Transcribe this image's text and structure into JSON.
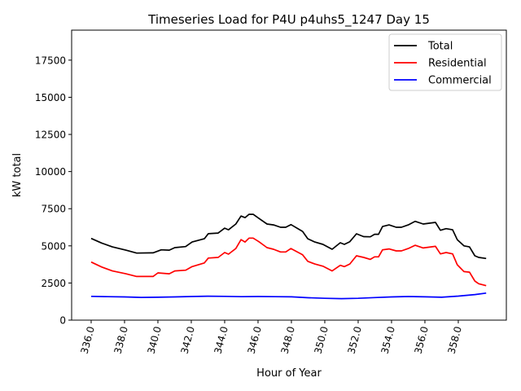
{
  "chart_data": {
    "type": "line",
    "title": "Timeseries Load for P4U p4uhs5_1247  Day 15",
    "xlabel": "Hour of Year",
    "ylabel": "kW total",
    "xlim": [
      334.83,
      360.88
    ],
    "ylim": [
      0,
      19520
    ],
    "xticks": [
      336,
      338,
      340,
      342,
      344,
      346,
      348,
      350,
      352,
      354,
      356,
      358
    ],
    "xtick_labels": [
      "336.0",
      "338.0",
      "340.0",
      "342.0",
      "344.0",
      "346.0",
      "348.0",
      "350.0",
      "352.0",
      "354.0",
      "356.0",
      "358.0"
    ],
    "yticks": [
      0,
      2500,
      5000,
      7500,
      10000,
      12500,
      15000,
      17500
    ],
    "ytick_labels": [
      "0",
      "2500",
      "5000",
      "7500",
      "10000",
      "12500",
      "15000",
      "17500"
    ],
    "grid": false,
    "legend_position": "top-right",
    "series": [
      {
        "name": "Total",
        "color": "#000000",
        "x": [
          336,
          336.62,
          337.27,
          338.08,
          338.73,
          339.71,
          340.2,
          340.68,
          341.01,
          341.66,
          342.05,
          342.78,
          343.02,
          343.61,
          344.0,
          344.23,
          344.67,
          344.98,
          345.22,
          345.46,
          345.71,
          346.05,
          346.54,
          346.93,
          347.35,
          347.66,
          347.97,
          348.67,
          348.98,
          349.4,
          349.89,
          350.44,
          350.93,
          351.17,
          351.5,
          351.9,
          352.33,
          352.73,
          352.98,
          353.22,
          353.46,
          353.85,
          354.28,
          354.59,
          355.0,
          355.41,
          355.9,
          356.63,
          356.93,
          357.27,
          357.66,
          357.94,
          358.34,
          358.67,
          358.99,
          359.22,
          359.67
        ],
        "y": [
          5500,
          5190,
          4930,
          4710,
          4510,
          4530,
          4730,
          4710,
          4880,
          4950,
          5260,
          5480,
          5820,
          5860,
          6190,
          6080,
          6470,
          7010,
          6900,
          7120,
          7120,
          6850,
          6470,
          6410,
          6250,
          6250,
          6430,
          5970,
          5480,
          5260,
          5100,
          4770,
          5210,
          5100,
          5280,
          5810,
          5620,
          5610,
          5780,
          5780,
          6300,
          6410,
          6250,
          6250,
          6410,
          6650,
          6470,
          6580,
          6050,
          6160,
          6080,
          5420,
          5000,
          4930,
          4330,
          4220,
          4150
        ]
      },
      {
        "name": "Residential",
        "color": "#ff0000",
        "x": [
          336,
          336.62,
          337.27,
          338.08,
          338.73,
          339.71,
          340.0,
          340.68,
          341.01,
          341.66,
          342.05,
          342.78,
          343.02,
          343.61,
          344.0,
          344.23,
          344.67,
          344.98,
          345.22,
          345.46,
          345.71,
          346.05,
          346.54,
          346.93,
          347.35,
          347.66,
          347.97,
          348.67,
          348.98,
          349.4,
          349.89,
          350.44,
          350.93,
          351.17,
          351.5,
          351.9,
          352.33,
          352.73,
          352.98,
          353.22,
          353.46,
          353.85,
          354.28,
          354.59,
          355.0,
          355.41,
          355.9,
          356.63,
          356.93,
          357.27,
          357.66,
          357.94,
          358.34,
          358.67,
          358.99,
          359.22,
          359.67
        ],
        "y": [
          3910,
          3580,
          3310,
          3120,
          2940,
          2940,
          3180,
          3120,
          3310,
          3360,
          3600,
          3850,
          4180,
          4220,
          4550,
          4440,
          4820,
          5420,
          5260,
          5520,
          5520,
          5280,
          4880,
          4770,
          4590,
          4590,
          4820,
          4400,
          3960,
          3780,
          3630,
          3310,
          3690,
          3600,
          3780,
          4330,
          4220,
          4090,
          4260,
          4260,
          4730,
          4790,
          4660,
          4660,
          4820,
          5040,
          4860,
          4970,
          4460,
          4550,
          4460,
          3730,
          3270,
          3230,
          2630,
          2450,
          2320
        ]
      },
      {
        "name": "Commercial",
        "color": "#0000ff",
        "x": [
          336,
          337,
          338,
          339,
          340,
          341,
          342,
          343,
          344,
          345,
          346,
          347,
          348,
          349,
          350,
          351,
          352,
          353,
          354,
          355,
          356,
          357,
          358,
          359,
          359.67
        ],
        "y": [
          1600,
          1580,
          1560,
          1530,
          1540,
          1560,
          1590,
          1610,
          1600,
          1580,
          1590,
          1580,
          1570,
          1510,
          1470,
          1450,
          1470,
          1520,
          1560,
          1590,
          1570,
          1540,
          1620,
          1720,
          1820
        ]
      }
    ]
  }
}
